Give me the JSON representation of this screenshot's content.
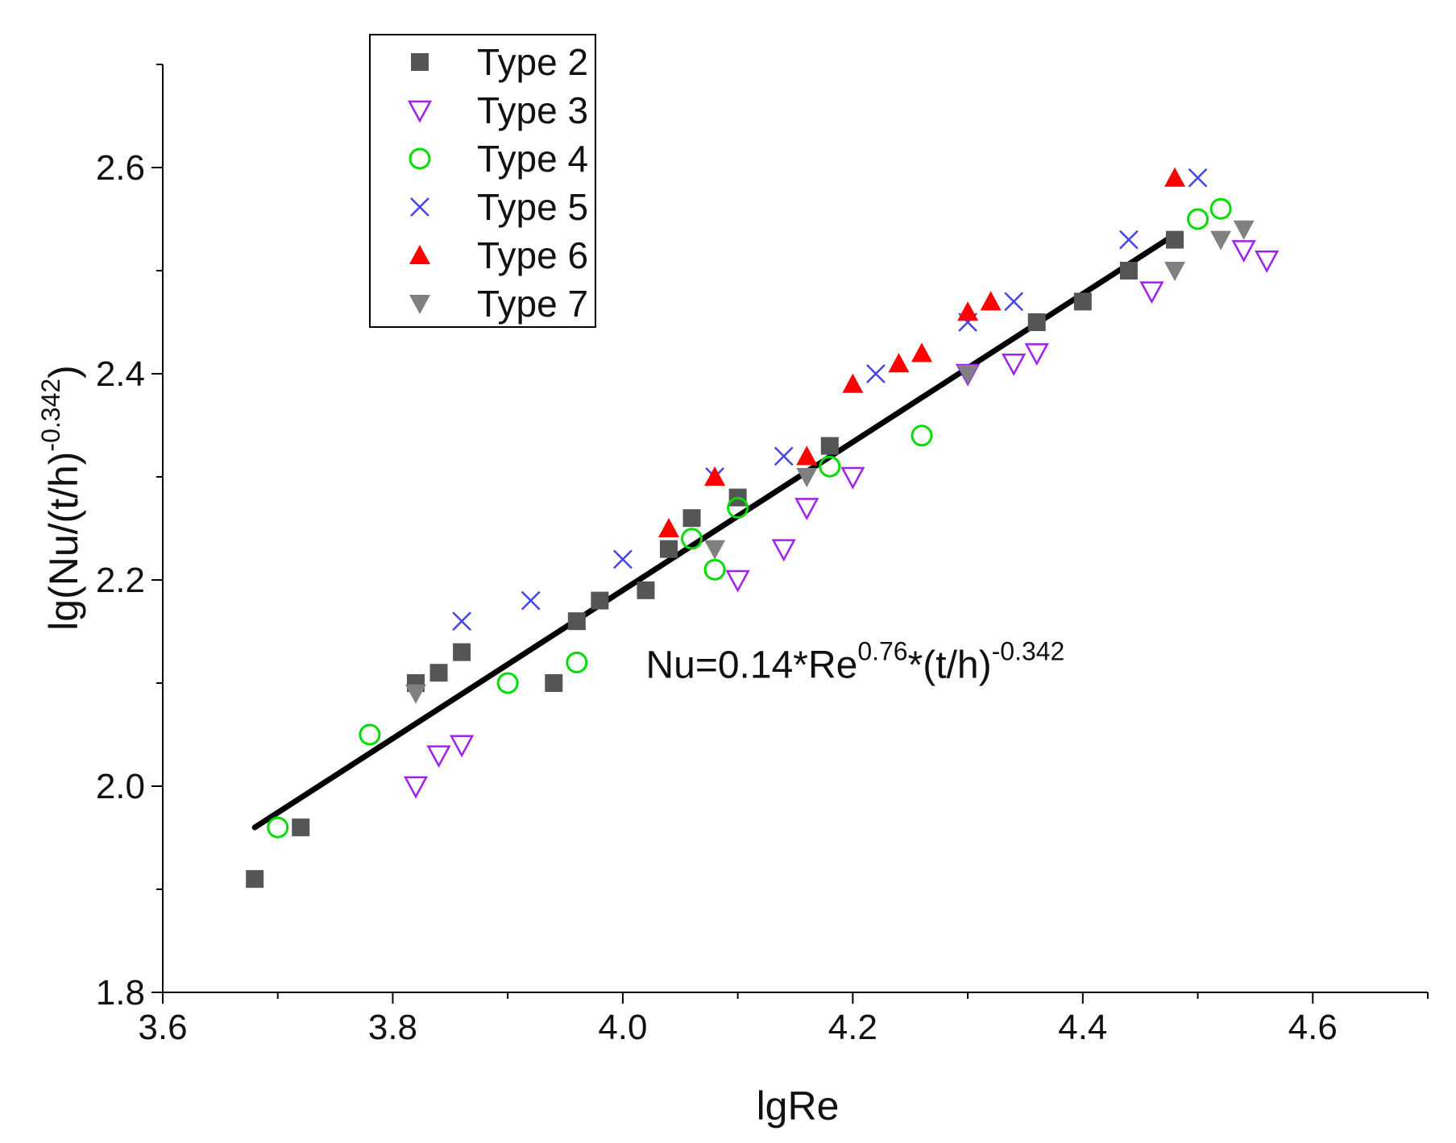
{
  "chart_data": {
    "type": "scatter",
    "title": "",
    "xlabel": "lgRe",
    "ylabel": {
      "main": "lg(Nu/(t/h)",
      "exponent": "-0.342",
      "close": ")"
    },
    "xlim": [
      3.6,
      4.7
    ],
    "ylim": [
      1.8,
      2.7
    ],
    "xticks": [
      "3.6",
      "3.8",
      "4.0",
      "4.2",
      "4.4",
      "4.6"
    ],
    "yticks": [
      "1.8",
      "2.0",
      "2.2",
      "2.4",
      "2.6"
    ],
    "grid": false,
    "legend_position": "top-left",
    "series": [
      {
        "name": "Type 2",
        "marker": "filled-square",
        "color": "#555555",
        "x": [
          3.68,
          3.72,
          3.82,
          3.84,
          3.86,
          3.94,
          3.96,
          3.98,
          4.02,
          4.04,
          4.06,
          4.1,
          4.18,
          4.36,
          4.4,
          4.44,
          4.48
        ],
        "y": [
          1.91,
          1.96,
          2.1,
          2.11,
          2.13,
          2.1,
          2.16,
          2.18,
          2.19,
          2.23,
          2.26,
          2.28,
          2.33,
          2.45,
          2.47,
          2.5,
          2.53
        ]
      },
      {
        "name": "Type 3",
        "marker": "open-triangle-down",
        "color": "#a020f0",
        "x": [
          3.82,
          3.84,
          3.86,
          4.1,
          4.14,
          4.16,
          4.2,
          4.3,
          4.34,
          4.36,
          4.46,
          4.54,
          4.56
        ],
        "y": [
          2.0,
          2.03,
          2.04,
          2.2,
          2.23,
          2.27,
          2.3,
          2.4,
          2.41,
          2.42,
          2.48,
          2.52,
          2.51
        ]
      },
      {
        "name": "Type 4",
        "marker": "open-circle",
        "color": "#00dd00",
        "x": [
          3.7,
          3.78,
          3.9,
          3.96,
          4.06,
          4.08,
          4.1,
          4.18,
          4.26,
          4.5,
          4.52
        ],
        "y": [
          1.96,
          2.05,
          2.1,
          2.12,
          2.24,
          2.21,
          2.27,
          2.31,
          2.34,
          2.55,
          2.56
        ]
      },
      {
        "name": "Type 5",
        "marker": "cross",
        "color": "#4444ee",
        "x": [
          3.86,
          3.92,
          4.0,
          4.08,
          4.14,
          4.22,
          4.3,
          4.34,
          4.44,
          4.5
        ],
        "y": [
          2.16,
          2.18,
          2.22,
          2.3,
          2.32,
          2.4,
          2.45,
          2.47,
          2.53,
          2.59
        ]
      },
      {
        "name": "Type 6",
        "marker": "filled-triangle-up",
        "color": "#ff0000",
        "x": [
          4.04,
          4.08,
          4.16,
          4.2,
          4.24,
          4.26,
          4.3,
          4.32,
          4.48
        ],
        "y": [
          2.25,
          2.3,
          2.32,
          2.39,
          2.41,
          2.42,
          2.46,
          2.47,
          2.59
        ]
      },
      {
        "name": "Type 7",
        "marker": "filled-triangle-down",
        "color": "#808080",
        "x": [
          3.82,
          4.08,
          4.16,
          4.3,
          4.48,
          4.52,
          4.54
        ],
        "y": [
          2.09,
          2.23,
          2.3,
          2.4,
          2.5,
          2.53,
          2.54
        ]
      }
    ],
    "fit_line": {
      "x": [
        3.68,
        4.48
      ],
      "y": [
        1.96,
        2.535
      ],
      "color": "#000000"
    },
    "annotation": {
      "base1": "Nu=0.14*Re",
      "exp1": "0.76",
      "base2": "*(t/h)",
      "exp2": "-0.342",
      "x": 4.02,
      "y": 2.105
    }
  }
}
